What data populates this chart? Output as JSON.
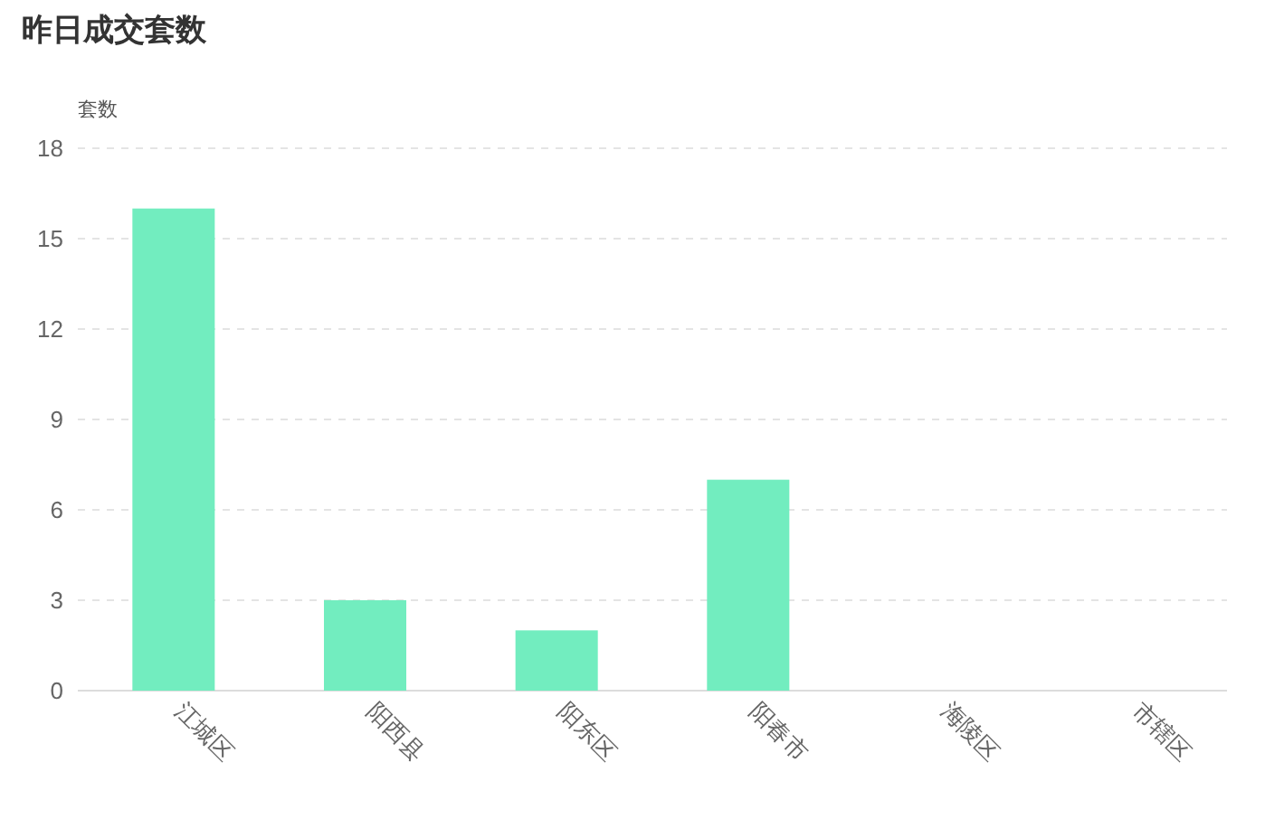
{
  "chart_data": {
    "type": "bar",
    "title": "昨日成交套数",
    "ylabel": "套数",
    "categories": [
      "江城区",
      "阳西县",
      "阳东区",
      "阳春市",
      "海陵区",
      "市辖区"
    ],
    "values": [
      16,
      3,
      2,
      7,
      0,
      0
    ],
    "color": "#72edbf",
    "ylim": [
      0,
      18
    ],
    "yticks": [
      0,
      3,
      6,
      9,
      12,
      15,
      18
    ],
    "grid": "y"
  }
}
